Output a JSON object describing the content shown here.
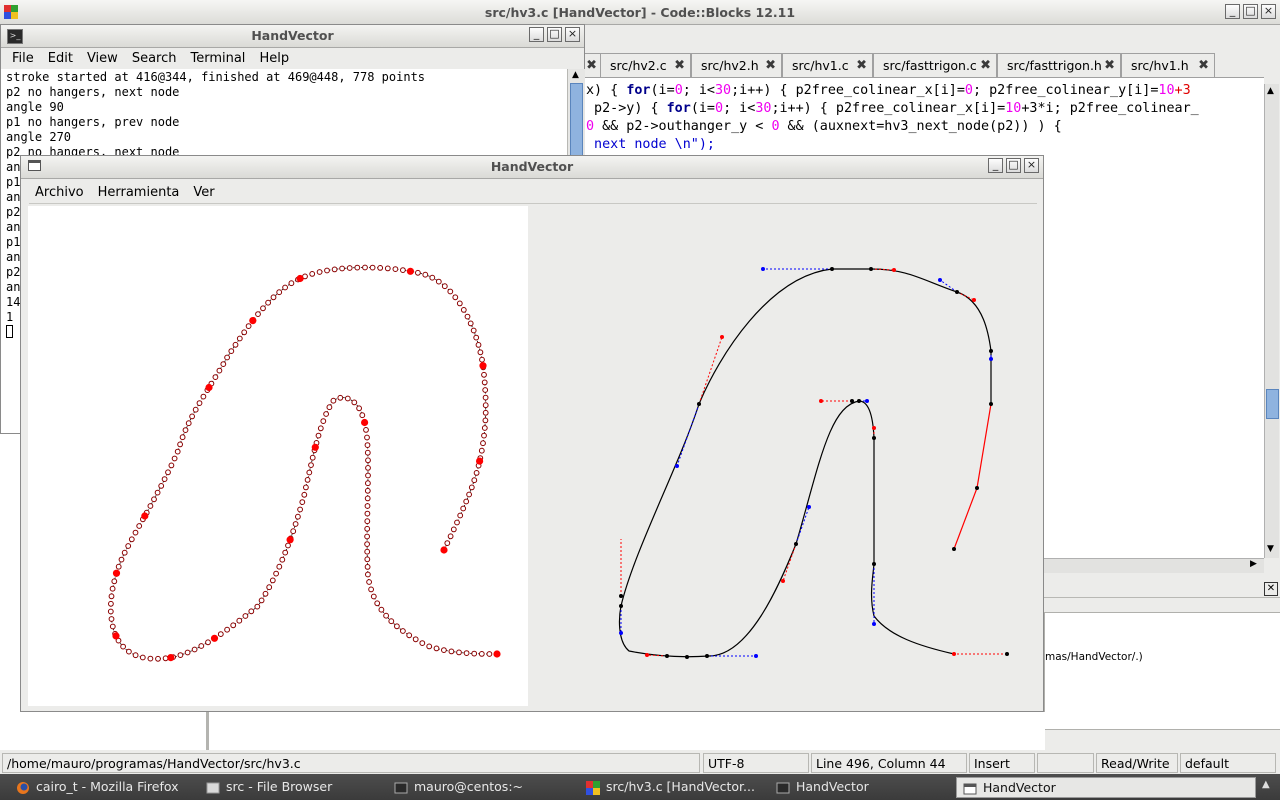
{
  "codeblocks": {
    "title": "src/hv3.c [HandVector] - Code::Blocks 12.11",
    "tabs": [
      "src/hv2.c",
      "src/hv2.h",
      "src/hv1.c",
      "src/fasttrigon.c",
      "src/fasttrigon.h",
      "src/hv1.h"
    ],
    "code": {
      "l1": {
        "a": "x) { ",
        "b": "for",
        "c": "(i=",
        "d": "0",
        "e": "; i<",
        "f": "30",
        "g": ";i++) { p2free_colinear_x[i]=",
        "h": "0",
        "i": "; p2free_colinear_y[i]=",
        "j": "10",
        "k": "+3"
      },
      "l2": {
        "a": " p2->y) { ",
        "b": "for",
        "c": "(i=",
        "d": "0",
        "e": "; i<",
        "f": "30",
        "g": ";i++) { p2free_colinear_x[i]=",
        "h": "10",
        "i": "+3*i; p2free_colinear_"
      },
      "l3": {
        "a": "0",
        "b": " && p2->outhanger_y < ",
        "c": "0",
        "d": " && (auxnext=hv3_next_node(p2)) ) {"
      },
      "l4": " next node \\n\");"
    },
    "log_fragment": "mas/HandVector/.)",
    "status": {
      "path": "/home/mauro/programas/HandVector/src/hv3.c",
      "encoding": "UTF-8",
      "position": "Line 496, Column 44",
      "mode": "Insert",
      "access": "Read/Write",
      "profile": "default"
    }
  },
  "terminal": {
    "title": "HandVector",
    "menu": [
      "File",
      "Edit",
      "View",
      "Search",
      "Terminal",
      "Help"
    ],
    "lines": [
      "stroke started at 416@344, finished at 469@448, 778 points",
      "p2 no hangers, next node",
      "angle 90",
      "p1 no hangers, prev node",
      "angle 270",
      "p2 no hangers, next node"
    ],
    "left_fragments": [
      "an",
      "p1",
      "an",
      "p2",
      "an",
      "p1",
      "an",
      "p2",
      "an",
      "14",
      "1"
    ]
  },
  "handvector": {
    "title": "HandVector",
    "menu": [
      "Archivo",
      "Herramienta",
      "Ver"
    ]
  },
  "taskbar": {
    "items": [
      "cairo_t - Mozilla Firefox",
      "src - File Browser",
      "mauro@centos:~",
      "src/hv3.c [HandVector...",
      "HandVector",
      "HandVector"
    ]
  },
  "colors": {
    "node_red": "#ff0000",
    "handle_blue": "#0000ff",
    "curve_black": "#000000",
    "taskbar": "#444444"
  }
}
